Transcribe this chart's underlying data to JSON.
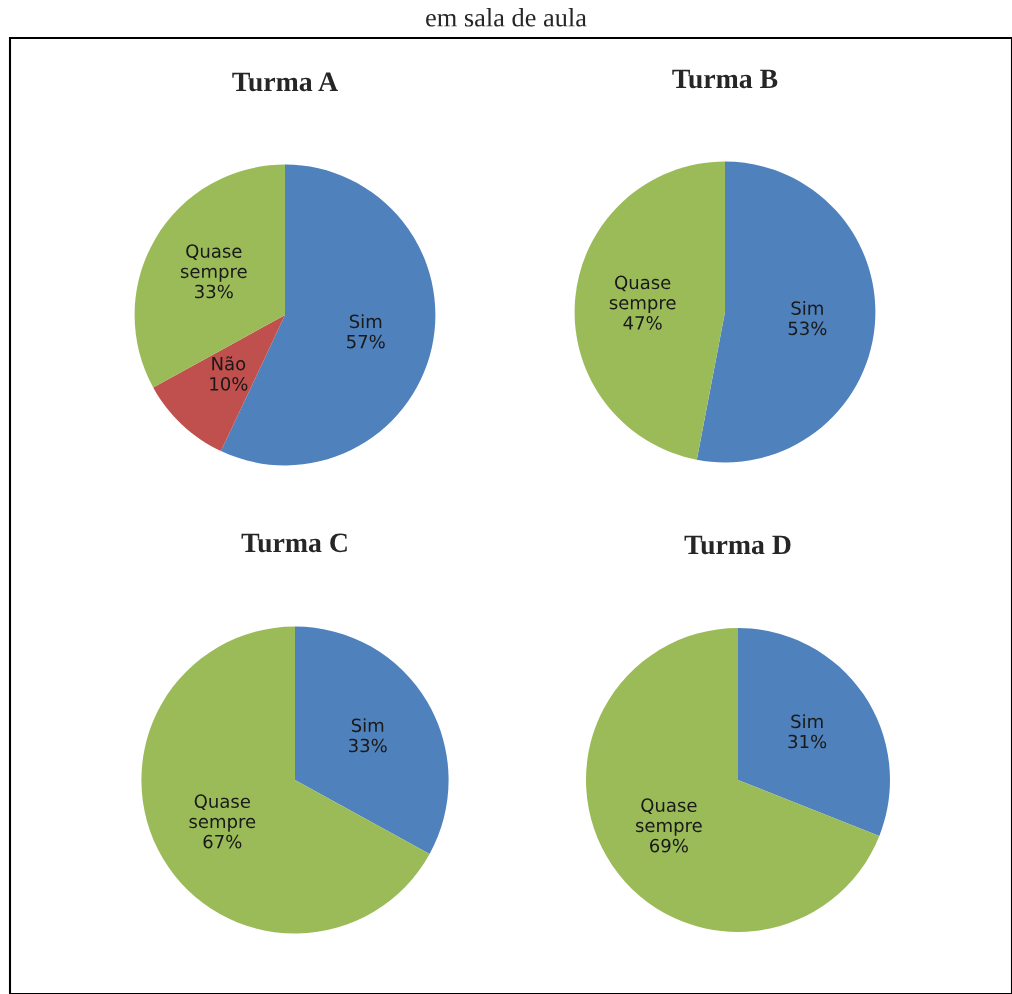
{
  "chart_data": [
    {
      "type": "pie",
      "title": "Turma A",
      "annotations": [
        "em sala de aula"
      ],
      "categories": [
        "Sim",
        "Não",
        "Quase sempre"
      ],
      "values": [
        57,
        10,
        33
      ],
      "value_labels": [
        "57%",
        "10%",
        "33%"
      ],
      "colors": [
        "#4f81bd",
        "#c0504d",
        "#9bbb59"
      ]
    },
    {
      "type": "pie",
      "title": "Turma B",
      "categories": [
        "Sim",
        "Quase sempre"
      ],
      "values": [
        53,
        47
      ],
      "value_labels": [
        "53%",
        "47%"
      ],
      "colors": [
        "#4f81bd",
        "#9bbb59"
      ]
    },
    {
      "type": "pie",
      "title": "Turma C",
      "categories": [
        "Sim",
        "Quase sempre"
      ],
      "values": [
        33,
        67
      ],
      "value_labels": [
        "33%",
        "67%"
      ],
      "colors": [
        "#4f81bd",
        "#9bbb59"
      ]
    },
    {
      "type": "pie",
      "title": "Turma D",
      "categories": [
        "Sim",
        "Quase sempre"
      ],
      "values": [
        31,
        69
      ],
      "value_labels": [
        "31%",
        "69%"
      ],
      "colors": [
        "#4f81bd",
        "#9bbb59"
      ]
    }
  ]
}
